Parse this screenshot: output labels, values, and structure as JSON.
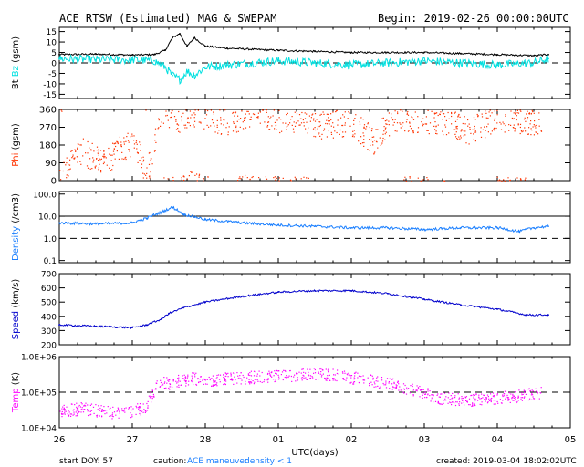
{
  "header": {
    "title": "ACE RTSW (Estimated) MAG & SWEPAM",
    "begin": "Begin: 2019-02-26 00:00:00UTC"
  },
  "footer": {
    "start_doy": "start DOY:  57",
    "caution_label": "caution:",
    "caution_maneuver": "ACE maneuver",
    "caution_density": "density < 1",
    "created": "created: 2019-03-04 18:02:02UTC"
  },
  "colors": {
    "bt": "#000000",
    "bz": "#00e0e0",
    "phi": "#ff3300",
    "density": "#1a7fff",
    "speed": "#0000cc",
    "temp": "#ff00ff",
    "frame": "#000000"
  },
  "chart_data": [
    {
      "type": "line",
      "ylabel_parts": [
        "Bt",
        "Bz",
        "(gsm)"
      ],
      "ylim": [
        -17,
        17
      ],
      "yticks": [
        15,
        10,
        5,
        0,
        -5,
        -10,
        -15
      ],
      "ytick_labels": [
        "15",
        "10",
        "5",
        "0",
        "-5",
        "-10",
        "-15"
      ],
      "dashed_lines": [
        0
      ],
      "x_days": [
        0,
        0.5,
        1.0,
        1.3,
        1.45,
        1.55,
        1.65,
        1.75,
        1.85,
        2.0,
        2.3,
        3.0,
        3.5,
        4.0,
        4.5,
        5.0,
        5.5,
        6.0,
        6.5,
        6.7
      ],
      "series": [
        {
          "name": "Bt",
          "color_key": "bt",
          "values": [
            4,
            4.2,
            3.8,
            4,
            6,
            12,
            14,
            8,
            12,
            8,
            7,
            6,
            5.5,
            5,
            5,
            5,
            4.5,
            4,
            3.5,
            4
          ]
        },
        {
          "name": "Bz",
          "color_key": "bz",
          "values": [
            2,
            1.5,
            1.5,
            1,
            -2,
            -6,
            -8,
            -4,
            -6,
            -2,
            -1,
            1,
            0,
            -1,
            0,
            1,
            0,
            -1,
            0,
            2
          ]
        }
      ]
    },
    {
      "type": "scatter",
      "ylabel_parts": [
        "Phi",
        "(gsm)"
      ],
      "ylim": [
        0,
        360
      ],
      "yticks": [
        360,
        270,
        180,
        90,
        0
      ],
      "ytick_labels": [
        "360",
        "270",
        "180",
        "90",
        "0"
      ],
      "dashed_lines": [],
      "x_days": [
        0.05,
        0.3,
        0.6,
        1.0,
        1.2,
        1.4,
        1.5,
        1.6,
        1.8,
        2.0,
        2.3,
        2.6,
        3.0,
        3.3,
        3.6,
        4.0,
        4.3,
        4.6,
        5.0,
        5.3,
        5.6,
        6.0,
        6.3,
        6.6
      ],
      "series": [
        {
          "name": "Phi",
          "color_key": "phi",
          "values": [
            60,
            150,
            100,
            200,
            40,
            320,
            330,
            300,
            340,
            320,
            300,
            330,
            310,
            320,
            280,
            300,
            200,
            320,
            310,
            300,
            250,
            320,
            310,
            300
          ]
        }
      ]
    },
    {
      "type": "line",
      "ylabel_parts": [
        "Density",
        "(/cm3)"
      ],
      "yscale": "log",
      "ylim": [
        0.08,
        130
      ],
      "yticks": [
        100,
        10,
        1,
        0.1
      ],
      "ytick_labels": [
        "100.0",
        "10.0",
        "1.0",
        "0.1"
      ],
      "dashed_lines": [
        1
      ],
      "solid_lines": [
        10
      ],
      "x_days": [
        0,
        0.5,
        1.0,
        1.2,
        1.4,
        1.55,
        1.7,
        2.0,
        2.5,
        3.0,
        3.5,
        4.0,
        4.5,
        5.0,
        5.5,
        6.0,
        6.3,
        6.5,
        6.7
      ],
      "series": [
        {
          "name": "Density",
          "color_key": "density",
          "values": [
            5,
            4.5,
            5,
            8,
            15,
            25,
            12,
            7,
            5,
            4,
            3.5,
            3,
            3,
            2.5,
            3,
            3,
            2,
            3,
            3.5
          ]
        }
      ]
    },
    {
      "type": "line",
      "ylabel_parts": [
        "Speed",
        "(km/s)"
      ],
      "ylim": [
        200,
        700
      ],
      "yticks": [
        700,
        600,
        500,
        400,
        300,
        200
      ],
      "ytick_labels": [
        "700",
        "600",
        "500",
        "400",
        "300",
        "200"
      ],
      "dashed_lines": [],
      "x_days": [
        0,
        0.5,
        1.0,
        1.2,
        1.4,
        1.5,
        1.7,
        2.0,
        2.5,
        3.0,
        3.5,
        4.0,
        4.5,
        5.0,
        5.5,
        6.0,
        6.4,
        6.7
      ],
      "series": [
        {
          "name": "Speed",
          "color_key": "speed",
          "values": [
            340,
            330,
            320,
            340,
            380,
            420,
            460,
            500,
            540,
            570,
            580,
            580,
            560,
            520,
            480,
            450,
            410,
            410
          ]
        }
      ]
    },
    {
      "type": "scatter",
      "ylabel_parts": [
        "Temp",
        "(K)"
      ],
      "yscale": "log",
      "ylim": [
        10000,
        1000000
      ],
      "yticks": [
        1000000,
        100000,
        10000
      ],
      "ytick_labels": [
        "1.0E+06",
        "1.0E+05",
        "1.0E+04"
      ],
      "dashed_lines": [
        100000
      ],
      "x_days": [
        0,
        0.3,
        0.6,
        0.9,
        1.2,
        1.4,
        1.5,
        1.8,
        2.0,
        2.4,
        2.8,
        3.2,
        3.6,
        4.0,
        4.4,
        4.8,
        5.2,
        5.6,
        6.0,
        6.3,
        6.6
      ],
      "series": [
        {
          "name": "Temp",
          "color_key": "temp",
          "values": [
            30000,
            35000,
            30000,
            25000,
            40000,
            200000,
            180000,
            250000,
            220000,
            250000,
            280000,
            300000,
            330000,
            260000,
            200000,
            120000,
            70000,
            60000,
            70000,
            80000,
            100000
          ]
        }
      ]
    }
  ],
  "xaxis": {
    "xlim": [
      0,
      7
    ],
    "tick_labels": [
      "26",
      "27",
      "28",
      "01",
      "02",
      "03",
      "04",
      "05"
    ],
    "label": "UTC(days)"
  }
}
